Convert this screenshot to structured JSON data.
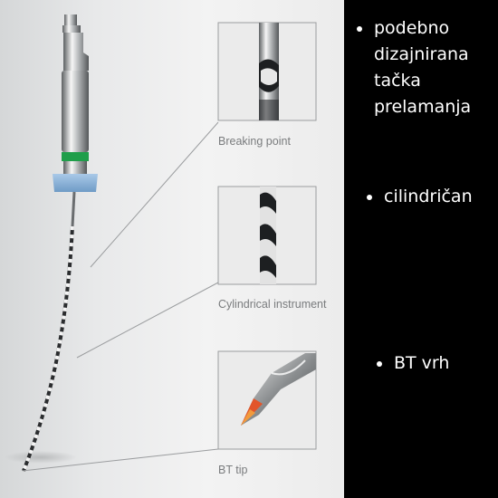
{
  "captions": {
    "breaking_point": "Breaking point",
    "cylindrical": "Cylindrical instrument",
    "bt_tip": "BT tip"
  },
  "bullets": [
    {
      "lines": [
        "podebno",
        "dizajnirana",
        "tačka",
        "prelamanja"
      ]
    },
    {
      "lines": [
        "cilindričan"
      ]
    },
    {
      "lines": [
        "BT vrh"
      ]
    }
  ],
  "colors": {
    "background": "#000000",
    "bullet_text": "#ffffff",
    "caption_text": "#7a7c7e",
    "handle_ring": "#1f9e4a",
    "stopper": "#8ab4da",
    "tip_accent": "#e2552a"
  }
}
